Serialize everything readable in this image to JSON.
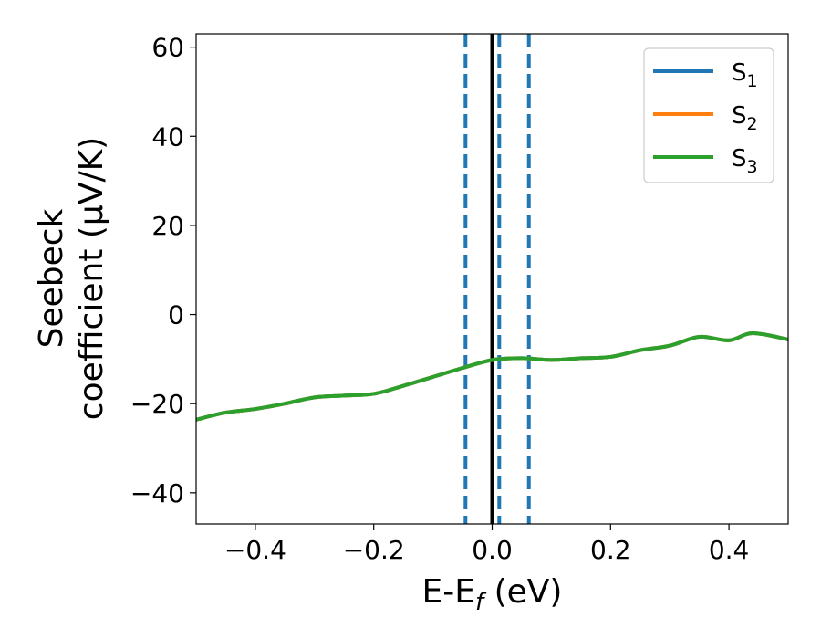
{
  "chart_data": {
    "type": "line",
    "xlabel": {
      "main": "E-E",
      "sub": "f",
      "tail": " (eV)"
    },
    "ylabel": {
      "line1": "Seebeck",
      "line2": "coefficient  (μV/K)"
    },
    "xlim": [
      -0.5,
      0.5
    ],
    "ylim": [
      -47,
      63
    ],
    "xticks": [
      -0.4,
      -0.2,
      0.0,
      0.2,
      0.4
    ],
    "xtick_labels": [
      "−0.4",
      "−0.2",
      "0.0",
      "0.2",
      "0.4"
    ],
    "yticks": [
      -40,
      -20,
      0,
      20,
      40,
      60
    ],
    "ytick_labels": [
      "−40",
      "−20",
      "0",
      "20",
      "40",
      "60"
    ],
    "grid": false,
    "legend_position": "top-right",
    "vlines": [
      {
        "x": -0.045,
        "style": "dashed",
        "color": "#1f77b4"
      },
      {
        "x": 0.012,
        "style": "dashed",
        "color": "#1f77b4"
      },
      {
        "x": 0.062,
        "style": "dashed",
        "color": "#1f77b4"
      },
      {
        "x": 0.0,
        "style": "solid",
        "color": "#000000"
      }
    ],
    "series": [
      {
        "name": "S",
        "sub": "1",
        "color": "#1f77b4",
        "x": [
          -0.5,
          -0.45,
          -0.4,
          -0.35,
          -0.3,
          -0.25,
          -0.2,
          -0.15,
          -0.1,
          -0.05,
          0.0,
          0.05,
          0.1,
          0.15,
          0.2,
          0.25,
          0.3,
          0.35,
          0.4,
          0.44,
          0.5
        ],
        "y": [
          -23.6,
          -22.0,
          -21.2,
          -20.0,
          -18.6,
          -18.2,
          -17.8,
          -16.0,
          -14.0,
          -12.0,
          -10.2,
          -9.8,
          -10.2,
          -9.8,
          -9.5,
          -8.0,
          -7.0,
          -5.0,
          -5.8,
          -4.2,
          -5.6
        ]
      },
      {
        "name": "S",
        "sub": "2",
        "color": "#ff7f0e",
        "x": [
          -0.5,
          -0.45,
          -0.4,
          -0.35,
          -0.3,
          -0.25,
          -0.2,
          -0.15,
          -0.1,
          -0.05,
          0.0,
          0.05,
          0.1,
          0.15,
          0.2,
          0.25,
          0.3,
          0.35,
          0.4,
          0.44,
          0.5
        ],
        "y": [
          -23.6,
          -22.0,
          -21.2,
          -20.0,
          -18.6,
          -18.2,
          -17.8,
          -16.0,
          -14.0,
          -12.0,
          -10.2,
          -9.8,
          -10.2,
          -9.8,
          -9.5,
          -8.0,
          -7.0,
          -5.0,
          -5.8,
          -4.2,
          -5.6
        ]
      },
      {
        "name": "S",
        "sub": "3",
        "color": "#2ca02c",
        "x": [
          -0.5,
          -0.45,
          -0.4,
          -0.35,
          -0.3,
          -0.25,
          -0.2,
          -0.15,
          -0.1,
          -0.05,
          0.0,
          0.05,
          0.1,
          0.15,
          0.2,
          0.25,
          0.3,
          0.35,
          0.4,
          0.44,
          0.5
        ],
        "y": [
          -23.6,
          -22.0,
          -21.2,
          -20.0,
          -18.6,
          -18.2,
          -17.8,
          -16.0,
          -14.0,
          -12.0,
          -10.2,
          -9.8,
          -10.2,
          -9.8,
          -9.5,
          -8.0,
          -7.0,
          -5.0,
          -5.8,
          -4.2,
          -5.6
        ]
      }
    ]
  }
}
